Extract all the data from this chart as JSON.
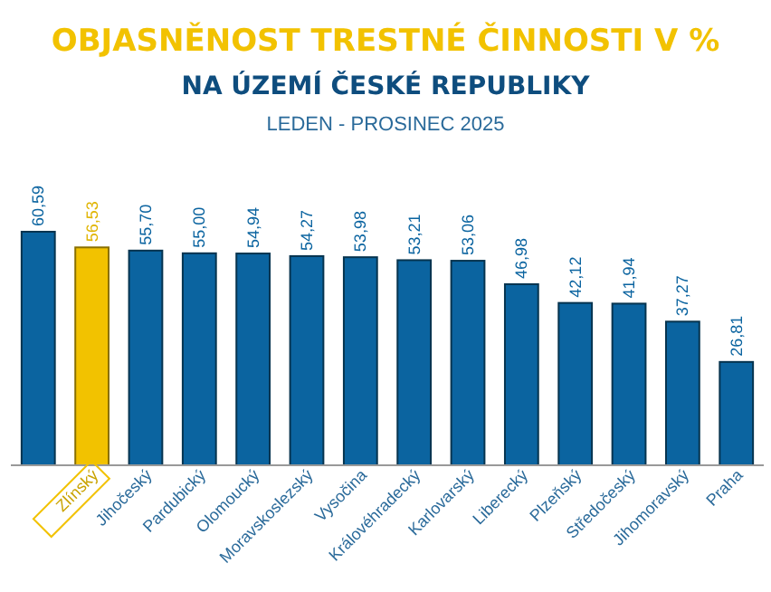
{
  "chart_data": {
    "type": "bar",
    "title": "OBJASNĚNOST  TRESTNÉ ČINNOSTI  V %",
    "subtitle": "NA ÚZEMÍ  ČESKÉ REPUBLIKY",
    "annotations": [
      "LEDEN - PROSINEC 2025"
    ],
    "categories": [
      null,
      "Zlínský",
      "Jihočeský",
      "Pardubický",
      "Olomoucký",
      "Moravskoslezský",
      "Vysočina",
      "Královéhradecký",
      "Karlovarský",
      "Liberecký",
      "Plzeňský",
      "Středočeský",
      "Jihomoravský",
      "Praha"
    ],
    "values": [
      60.59,
      56.53,
      55.7,
      55.0,
      54.94,
      54.27,
      53.98,
      53.21,
      53.06,
      46.98,
      42.12,
      41.94,
      37.27,
      26.81
    ],
    "value_labels": [
      "60,59",
      "56,53",
      "55,70",
      "55,00",
      "54,94",
      "54,27",
      "53,98",
      "53,21",
      "53,06",
      "46,98",
      "42,12",
      "41,94",
      "37,27",
      "26,81"
    ],
    "colors": [
      "#0b64a0",
      "#f2c200",
      "#0b64a0",
      "#0b64a0",
      "#0b64a0",
      "#0b64a0",
      "#0b64a0",
      "#0b64a0",
      "#0b64a0",
      "#0b64a0",
      "#0b64a0",
      "#0b64a0",
      "#0b64a0",
      "#0b64a0"
    ]
  }
}
